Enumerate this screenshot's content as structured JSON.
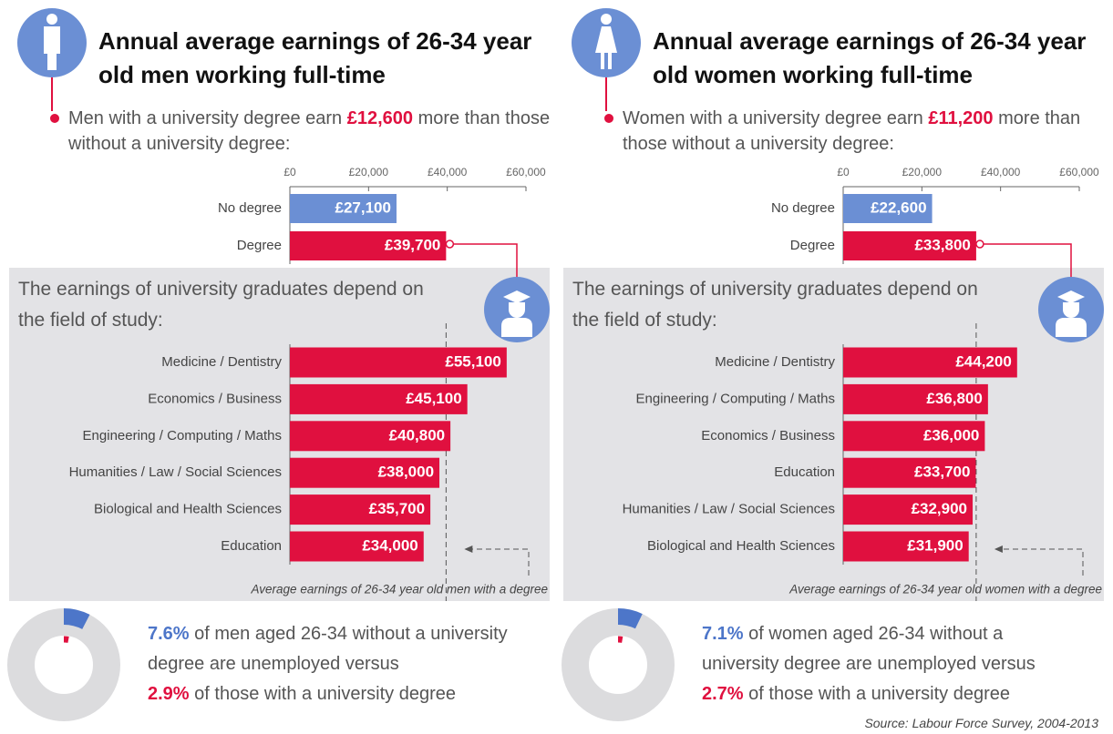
{
  "chart_data": [
    {
      "type": "bar",
      "orientation": "horizontal",
      "title": "Annual average earnings of 26-34 year old men working full-time",
      "subtitle": {
        "before": "Men with a university degree earn ",
        "highlight": "£12,600",
        "after": " more than those without a university degree:"
      },
      "categories": [
        "No degree",
        "Degree"
      ],
      "values": [
        27100,
        39700
      ],
      "value_labels": [
        "£27,100",
        "£39,700"
      ],
      "colors": [
        "#6b8fd4",
        "#e0103f"
      ],
      "xlim": [
        0,
        60000
      ],
      "xticks": [
        {
          "value": 0,
          "label": "£0"
        },
        {
          "value": 20000,
          "label": "£20,000"
        },
        {
          "value": 40000,
          "label": "£40,000"
        },
        {
          "value": 60000,
          "label": "£60,000"
        }
      ]
    },
    {
      "type": "bar",
      "orientation": "horizontal",
      "title": "The earnings of university graduates depend on the field of study:",
      "categories": [
        "Medicine  / Dentistry",
        "Economics  / Business",
        "Engineering  / Computing  / Maths",
        "Humanities  / Law / Social Sciences",
        "Biological  and Health  Sciences",
        "Education"
      ],
      "values": [
        55100,
        45100,
        40800,
        38000,
        35700,
        34000
      ],
      "value_labels": [
        "£55,100",
        "£45,100",
        "£40,800",
        "£38,000",
        "£35,700",
        "£34,000"
      ],
      "color": "#e0103f",
      "xlim": [
        0,
        60000
      ],
      "reference": {
        "value": 39700,
        "label": "Average earnings of 26-34 year old men with a degree"
      }
    },
    {
      "type": "donut",
      "values": [
        7.6,
        2.9
      ],
      "value_labels": [
        "7.6%",
        "2.9%"
      ],
      "colors": [
        "#4d76c9",
        "#e0103f"
      ],
      "texts": [
        " of men aged 26-34 without a university degree are unemployed versus",
        " of those with a university degree"
      ]
    },
    {
      "type": "bar",
      "orientation": "horizontal",
      "title": "Annual average earnings of 26-34 year old women working full-time",
      "subtitle": {
        "before": "Women with a university degree earn ",
        "highlight": "£11,200",
        "after": " more than those without a university degree:"
      },
      "categories": [
        "No degree",
        "Degree"
      ],
      "values": [
        22600,
        33800
      ],
      "value_labels": [
        "£22,600",
        "£33,800"
      ],
      "colors": [
        "#6b8fd4",
        "#e0103f"
      ],
      "xlim": [
        0,
        60000
      ],
      "xticks": [
        {
          "value": 0,
          "label": "£0"
        },
        {
          "value": 20000,
          "label": "£20,000"
        },
        {
          "value": 40000,
          "label": "£40,000"
        },
        {
          "value": 60000,
          "label": "£60,000"
        }
      ]
    },
    {
      "type": "bar",
      "orientation": "horizontal",
      "title": "The earnings of university graduates depend on the field of study:",
      "categories": [
        "Medicine  / Dentistry",
        "Engineering  / Computing  / Maths",
        "Economics  / Business",
        "Education",
        "Humanities  / Law / Social Sciences",
        "Biological  and Health  Sciences"
      ],
      "values": [
        44200,
        36800,
        36000,
        33700,
        32900,
        31900
      ],
      "value_labels": [
        "£44,200",
        "£36,800",
        "£36,000",
        "£33,700",
        "£32,900",
        "£31,900"
      ],
      "color": "#e0103f",
      "xlim": [
        0,
        60000
      ],
      "reference": {
        "value": 33800,
        "label": "Average earnings of 26-34 year old women with a degree"
      }
    },
    {
      "type": "donut",
      "values": [
        7.1,
        2.7
      ],
      "value_labels": [
        "7.1%",
        "2.7%"
      ],
      "colors": [
        "#4d76c9",
        "#e0103f"
      ],
      "texts": [
        " of women aged 26-34 without a university degree are unemployed versus",
        " of those with a university degree"
      ]
    }
  ],
  "source": "Source: Labour Force Survey, 2004-2013"
}
